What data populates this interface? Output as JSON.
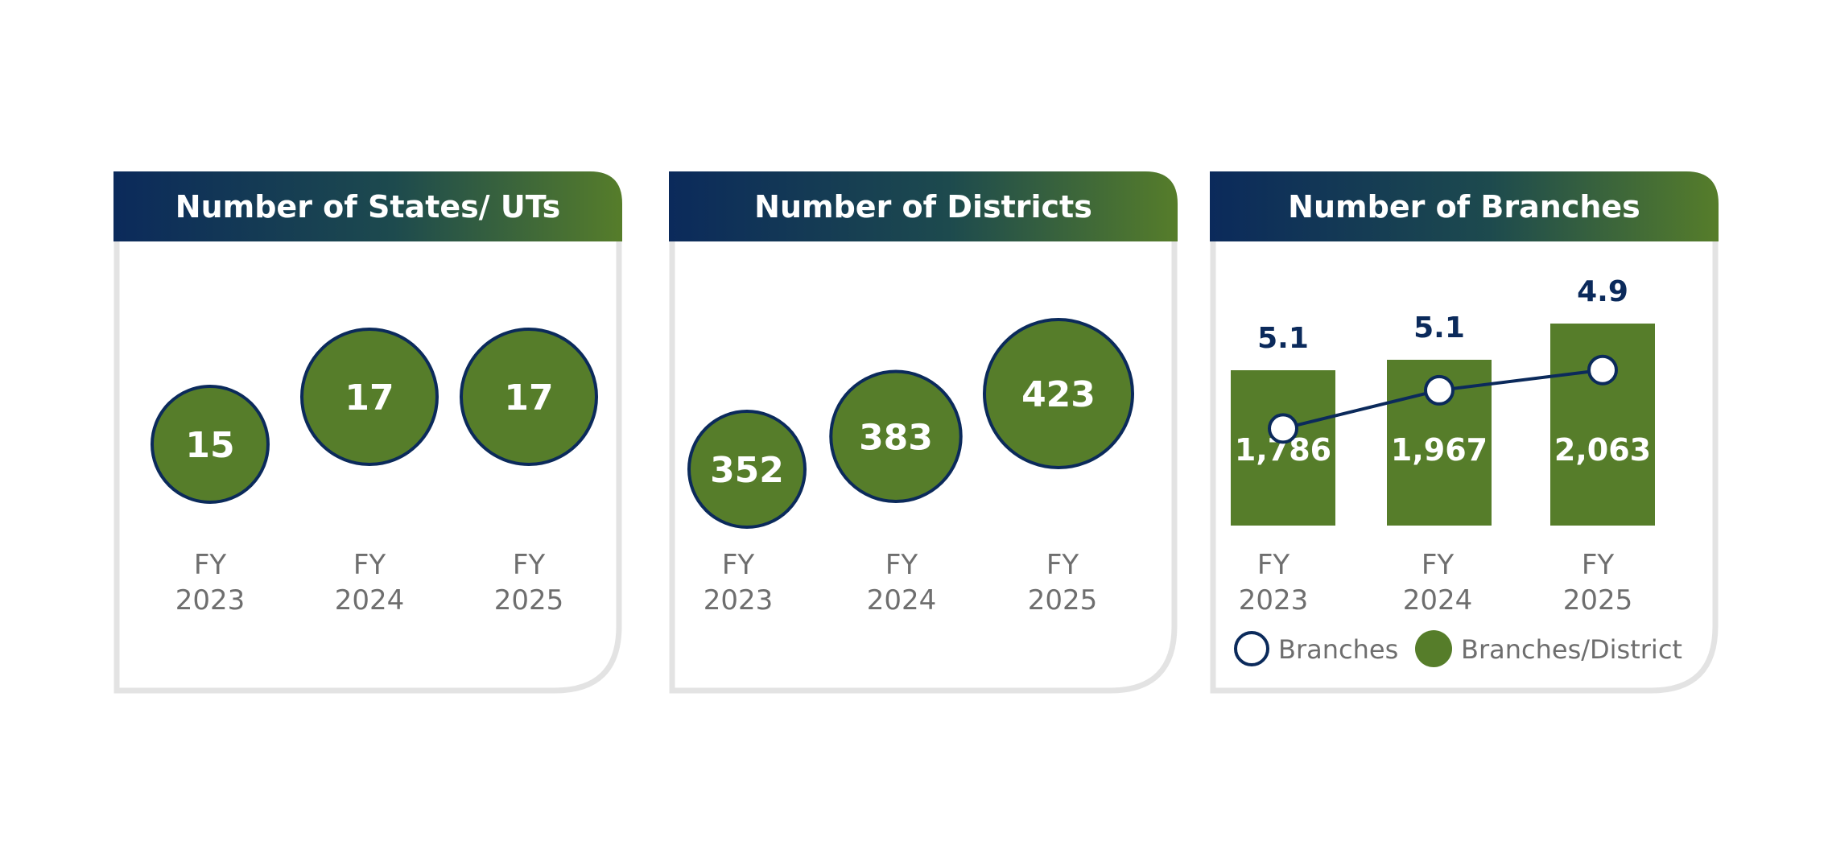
{
  "colors": {
    "navy": "#0b2a5b",
    "green": "#567d2a",
    "panel_border": "#e3e3e3",
    "text_gray": "#6e6e6e",
    "white": "#ffffff"
  },
  "panels": [
    {
      "title": "Number of States/ UTs"
    },
    {
      "title": "Number of Districts"
    },
    {
      "title": "Number of Branches"
    }
  ],
  "chart_data": [
    {
      "type": "bubble",
      "title": "Number of States/ UTs",
      "categories": [
        [
          "FY",
          "2023"
        ],
        [
          "FY",
          "2024"
        ],
        [
          "FY",
          "2025"
        ]
      ],
      "values": [
        15,
        17,
        17
      ],
      "labels": [
        "15",
        "17",
        "17"
      ]
    },
    {
      "type": "bubble",
      "title": "Number of Districts",
      "categories": [
        [
          "FY",
          "2023"
        ],
        [
          "FY",
          "2024"
        ],
        [
          "FY",
          "2025"
        ]
      ],
      "values": [
        352,
        383,
        423
      ],
      "labels": [
        "352",
        "383",
        "423"
      ]
    },
    {
      "type": "bar",
      "title": "Number of Branches",
      "categories": [
        [
          "FY",
          "2023"
        ],
        [
          "FY",
          "2024"
        ],
        [
          "FY",
          "2025"
        ]
      ],
      "series": [
        {
          "name": "Branches",
          "type": "line",
          "values": [
            1786,
            1967,
            2063
          ],
          "labels": [
            "1,786",
            "1,967",
            "2,063"
          ]
        },
        {
          "name": "Branches/District",
          "type": "bar",
          "values": [
            5.1,
            5.1,
            4.9
          ],
          "labels": [
            "5.1",
            "5.1",
            "4.9"
          ]
        }
      ],
      "legend": {
        "position": "bottom",
        "items": [
          "Branches",
          "Branches/District"
        ]
      }
    }
  ]
}
